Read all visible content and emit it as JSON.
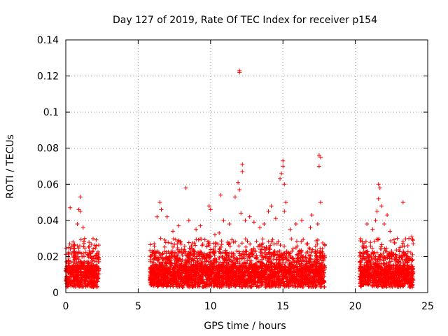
{
  "chart_data": {
    "type": "scatter",
    "title": "Day 127 of 2019, Rate Of TEC Index for receiver p154",
    "xlabel": "GPS time / hours",
    "ylabel": "ROTI / TECUs",
    "xlim": [
      0,
      25
    ],
    "ylim": [
      0,
      0.14
    ],
    "xticks": [
      "0",
      "5",
      "10",
      "15",
      "20",
      "25"
    ],
    "yticks": [
      "0",
      "0.02",
      "0.04",
      "0.06",
      "0.08",
      "0.1",
      "0.12",
      "0.14"
    ],
    "xtick_values": [
      0,
      5,
      10,
      15,
      20,
      25
    ],
    "ytick_values": [
      0,
      0.02,
      0.04,
      0.06,
      0.08,
      0.1,
      0.12,
      0.14
    ],
    "grid": true,
    "marker": "+",
    "color": "#ff0000",
    "series": [
      {
        "name": "ROTI",
        "segments": [
          [
            -0.1,
            2.3
          ],
          [
            5.8,
            17.9
          ],
          [
            20.3,
            24.0
          ]
        ],
        "points": [
          [
            0.2,
            0.025
          ],
          [
            0.3,
            0.047
          ],
          [
            0.5,
            0.028
          ],
          [
            0.8,
            0.038
          ],
          [
            0.9,
            0.046
          ],
          [
            1.0,
            0.053
          ],
          [
            1.0,
            0.045
          ],
          [
            1.2,
            0.036
          ],
          [
            1.3,
            0.03
          ],
          [
            2.1,
            0.026
          ],
          [
            6.3,
            0.042
          ],
          [
            6.5,
            0.05
          ],
          [
            6.6,
            0.046
          ],
          [
            7.0,
            0.042
          ],
          [
            7.4,
            0.034
          ],
          [
            7.8,
            0.037
          ],
          [
            8.3,
            0.058
          ],
          [
            8.5,
            0.04
          ],
          [
            9.0,
            0.035
          ],
          [
            9.3,
            0.037
          ],
          [
            9.9,
            0.048
          ],
          [
            10.0,
            0.046
          ],
          [
            10.3,
            0.032
          ],
          [
            10.6,
            0.033
          ],
          [
            10.7,
            0.054
          ],
          [
            10.9,
            0.04
          ],
          [
            11.3,
            0.038
          ],
          [
            11.7,
            0.053
          ],
          [
            11.9,
            0.061
          ],
          [
            12.0,
            0.057
          ],
          [
            12.1,
            0.044
          ],
          [
            12.2,
            0.067
          ],
          [
            12.2,
            0.071
          ],
          [
            12.4,
            0.04
          ],
          [
            12.7,
            0.042
          ],
          [
            13.0,
            0.039
          ],
          [
            13.4,
            0.036
          ],
          [
            13.7,
            0.038
          ],
          [
            14.0,
            0.045
          ],
          [
            14.2,
            0.048
          ],
          [
            14.5,
            0.041
          ],
          [
            14.8,
            0.063
          ],
          [
            14.9,
            0.066
          ],
          [
            15.0,
            0.07
          ],
          [
            15.0,
            0.073
          ],
          [
            15.1,
            0.06
          ],
          [
            15.2,
            0.05
          ],
          [
            15.1,
            0.045
          ],
          [
            15.5,
            0.035
          ],
          [
            15.9,
            0.038
          ],
          [
            16.3,
            0.04
          ],
          [
            16.9,
            0.036
          ],
          [
            17.0,
            0.043
          ],
          [
            17.5,
            0.076
          ],
          [
            17.5,
            0.07
          ],
          [
            17.6,
            0.075
          ],
          [
            17.6,
            0.05
          ],
          [
            17.4,
            0.038
          ],
          [
            12.0,
            0.123
          ],
          [
            12.0,
            0.122
          ],
          [
            20.8,
            0.038
          ],
          [
            21.2,
            0.035
          ],
          [
            21.4,
            0.04
          ],
          [
            21.5,
            0.045
          ],
          [
            21.6,
            0.06
          ],
          [
            21.7,
            0.058
          ],
          [
            21.6,
            0.052
          ],
          [
            21.8,
            0.048
          ],
          [
            22.0,
            0.038
          ],
          [
            22.2,
            0.043
          ],
          [
            22.4,
            0.034
          ],
          [
            22.9,
            0.03
          ],
          [
            23.3,
            0.05
          ],
          [
            23.7,
            0.03
          ],
          [
            23.9,
            0.031
          ]
        ]
      }
    ]
  }
}
